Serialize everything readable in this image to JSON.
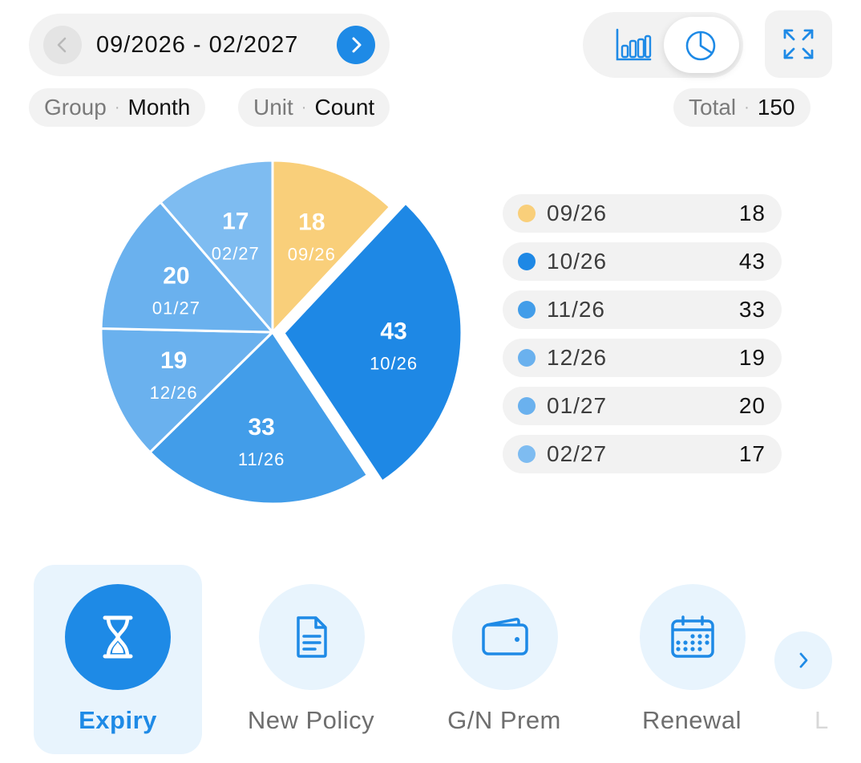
{
  "header": {
    "date_range": "09/2026 - 02/2027",
    "group_key": "Group",
    "group_value": "Month",
    "unit_key": "Unit",
    "unit_value": "Count",
    "total_key": "Total",
    "total_value": "150",
    "chips_separator": "·",
    "prev_icon": "chevron-left-icon",
    "next_icon": "chevron-right-icon",
    "bar_view_icon": "bar-chart-icon",
    "pie_view_icon": "pie-chart-icon",
    "expand_icon": "expand-icon",
    "active_view": "pie"
  },
  "chart_data": {
    "type": "pie",
    "total": 150,
    "exploded_slice": "10/26",
    "slices": [
      {
        "label": "09/26",
        "value": 18,
        "color": "#f9cf7a"
      },
      {
        "label": "10/26",
        "value": 43,
        "color": "#1e88e5"
      },
      {
        "label": "11/26",
        "value": 33,
        "color": "#429de9"
      },
      {
        "label": "12/26",
        "value": 19,
        "color": "#6ab1ee"
      },
      {
        "label": "01/27",
        "value": 20,
        "color": "#6ab1ee"
      },
      {
        "label": "02/27",
        "value": 17,
        "color": "#7ebcf1"
      }
    ]
  },
  "legend": [
    {
      "label": "09/26",
      "value": "18",
      "color": "#f9cf7a"
    },
    {
      "label": "10/26",
      "value": "43",
      "color": "#1e88e5"
    },
    {
      "label": "11/26",
      "value": "33",
      "color": "#429de9"
    },
    {
      "label": "12/26",
      "value": "19",
      "color": "#6ab1ee"
    },
    {
      "label": "01/27",
      "value": "20",
      "color": "#6ab1ee"
    },
    {
      "label": "02/27",
      "value": "17",
      "color": "#7ebcf1"
    }
  ],
  "tabs": [
    {
      "label": "Expiry",
      "icon": "hourglass-icon",
      "active": true
    },
    {
      "label": "New Policy",
      "icon": "document-icon",
      "active": false
    },
    {
      "label": "G/N Prem",
      "icon": "wallet-icon",
      "active": false
    },
    {
      "label": "Renewal",
      "icon": "calendar-icon",
      "active": false
    }
  ],
  "tabs_more_icon": "chevron-right-icon",
  "tab_cut_text": "L",
  "colors": {
    "accent": "#1e8ae6",
    "tab_active_bg": "#e8f4fd",
    "chip_bg": "#f2f2f2"
  }
}
